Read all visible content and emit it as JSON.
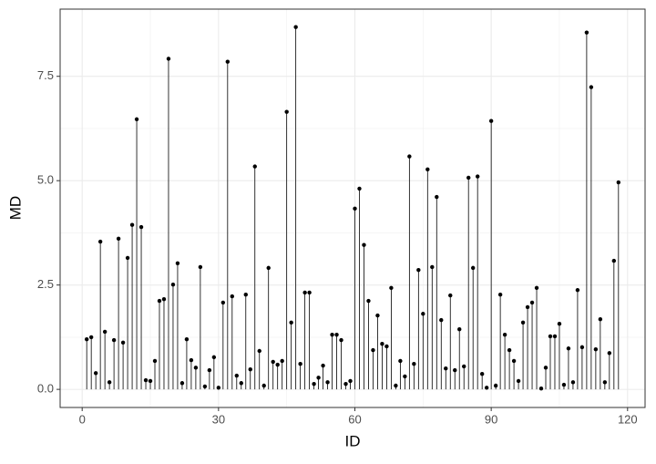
{
  "chart_data": {
    "type": "lollipop",
    "x_label": "ID",
    "y_label": "MD",
    "x": [
      1,
      2,
      3,
      4,
      5,
      6,
      7,
      8,
      9,
      10,
      11,
      12,
      13,
      14,
      15,
      16,
      17,
      18,
      19,
      20,
      21,
      22,
      23,
      24,
      25,
      26,
      27,
      28,
      29,
      30,
      31,
      32,
      33,
      34,
      35,
      36,
      37,
      38,
      39,
      40,
      41,
      42,
      43,
      44,
      45,
      46,
      47,
      48,
      49,
      50,
      51,
      52,
      53,
      54,
      55,
      56,
      57,
      58,
      59,
      60,
      61,
      62,
      63,
      64,
      65,
      66,
      67,
      68,
      69,
      70,
      71,
      72,
      73,
      74,
      75,
      76,
      77,
      78,
      79,
      80,
      81,
      82,
      83,
      84,
      85,
      86,
      87,
      88,
      89,
      90,
      91,
      92,
      93,
      94,
      95,
      96,
      97,
      98,
      99,
      100,
      101,
      102,
      103,
      104,
      105,
      106,
      107,
      108,
      109,
      110,
      111,
      112,
      113,
      114,
      115,
      116,
      117,
      118
    ],
    "values": [
      1.2,
      1.25,
      0.39,
      3.54,
      1.38,
      0.17,
      1.18,
      3.61,
      1.12,
      3.15,
      3.94,
      6.47,
      3.89,
      0.22,
      0.2,
      0.68,
      2.12,
      2.16,
      7.92,
      2.51,
      3.02,
      0.15,
      1.2,
      0.7,
      0.52,
      2.93,
      0.07,
      0.46,
      0.77,
      0.04,
      2.08,
      7.85,
      2.23,
      0.33,
      0.15,
      2.27,
      0.48,
      5.34,
      0.92,
      0.09,
      2.91,
      0.66,
      0.59,
      0.68,
      6.65,
      1.6,
      8.68,
      0.61,
      2.32,
      2.32,
      0.13,
      0.28,
      0.57,
      0.17,
      1.31,
      1.31,
      1.18,
      0.13,
      0.2,
      4.33,
      4.81,
      3.46,
      2.12,
      0.94,
      1.77,
      1.09,
      1.03,
      2.43,
      0.09,
      0.68,
      0.31,
      5.58,
      0.61,
      2.86,
      1.81,
      5.27,
      2.93,
      4.61,
      1.66,
      0.5,
      2.25,
      0.46,
      1.44,
      0.55,
      5.07,
      2.91,
      5.1,
      0.37,
      0.04,
      6.43,
      0.09,
      2.27,
      1.31,
      0.94,
      0.68,
      0.2,
      1.6,
      1.97,
      2.08,
      2.43,
      0.02,
      0.52,
      1.27,
      1.27,
      1.57,
      0.11,
      0.98,
      0.17,
      2.38,
      1.01,
      8.55,
      7.24,
      0.96,
      1.68,
      0.17,
      0.87,
      3.08,
      4.96
    ],
    "color": "#000000",
    "xlim": [
      -4.85,
      123.85
    ],
    "ylim": [
      -0.434,
      9.11
    ],
    "xticks": [
      0,
      30,
      60,
      90,
      120
    ],
    "yticks": [
      {
        "value": 0,
        "label": "0.0"
      },
      2.5,
      {
        "value": 5,
        "label": "5.0"
      },
      7.5
    ],
    "grid": true
  }
}
